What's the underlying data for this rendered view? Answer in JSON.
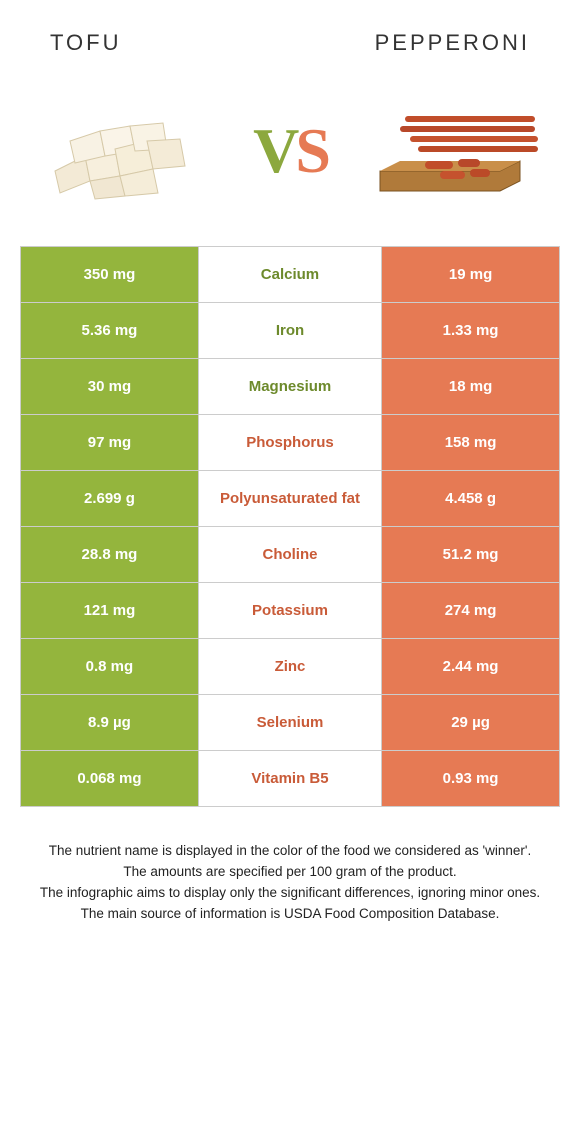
{
  "header": {
    "left_title": "Tofu",
    "right_title": "Pepperoni"
  },
  "vs": {
    "v": "V",
    "s": "S"
  },
  "colors": {
    "green": "#94b53d",
    "green_text": "#6d8a2c",
    "orange": "#e67a54",
    "orange_text": "#c95b38"
  },
  "rows": [
    {
      "label": "Calcium",
      "left": "350 mg",
      "right": "19 mg",
      "winner": "left"
    },
    {
      "label": "Iron",
      "left": "5.36 mg",
      "right": "1.33 mg",
      "winner": "left"
    },
    {
      "label": "Magnesium",
      "left": "30 mg",
      "right": "18 mg",
      "winner": "left"
    },
    {
      "label": "Phosphorus",
      "left": "97 mg",
      "right": "158 mg",
      "winner": "right"
    },
    {
      "label": "Polyunsaturated fat",
      "left": "2.699 g",
      "right": "4.458 g",
      "winner": "right"
    },
    {
      "label": "Choline",
      "left": "28.8 mg",
      "right": "51.2 mg",
      "winner": "right"
    },
    {
      "label": "Potassium",
      "left": "121 mg",
      "right": "274 mg",
      "winner": "right"
    },
    {
      "label": "Zinc",
      "left": "0.8 mg",
      "right": "2.44 mg",
      "winner": "right"
    },
    {
      "label": "Selenium",
      "left": "8.9 µg",
      "right": "29 µg",
      "winner": "right"
    },
    {
      "label": "Vitamin B5",
      "left": "0.068 mg",
      "right": "0.93 mg",
      "winner": "right"
    }
  ],
  "footer": {
    "line1": "The nutrient name is displayed in the color of the food we considered as 'winner'.",
    "line2": "The amounts are specified per 100 gram of the product.",
    "line3": "The infographic aims to display only the significant differences, ignoring minor ones.",
    "line4": "The main source of information is USDA Food Composition Database."
  }
}
